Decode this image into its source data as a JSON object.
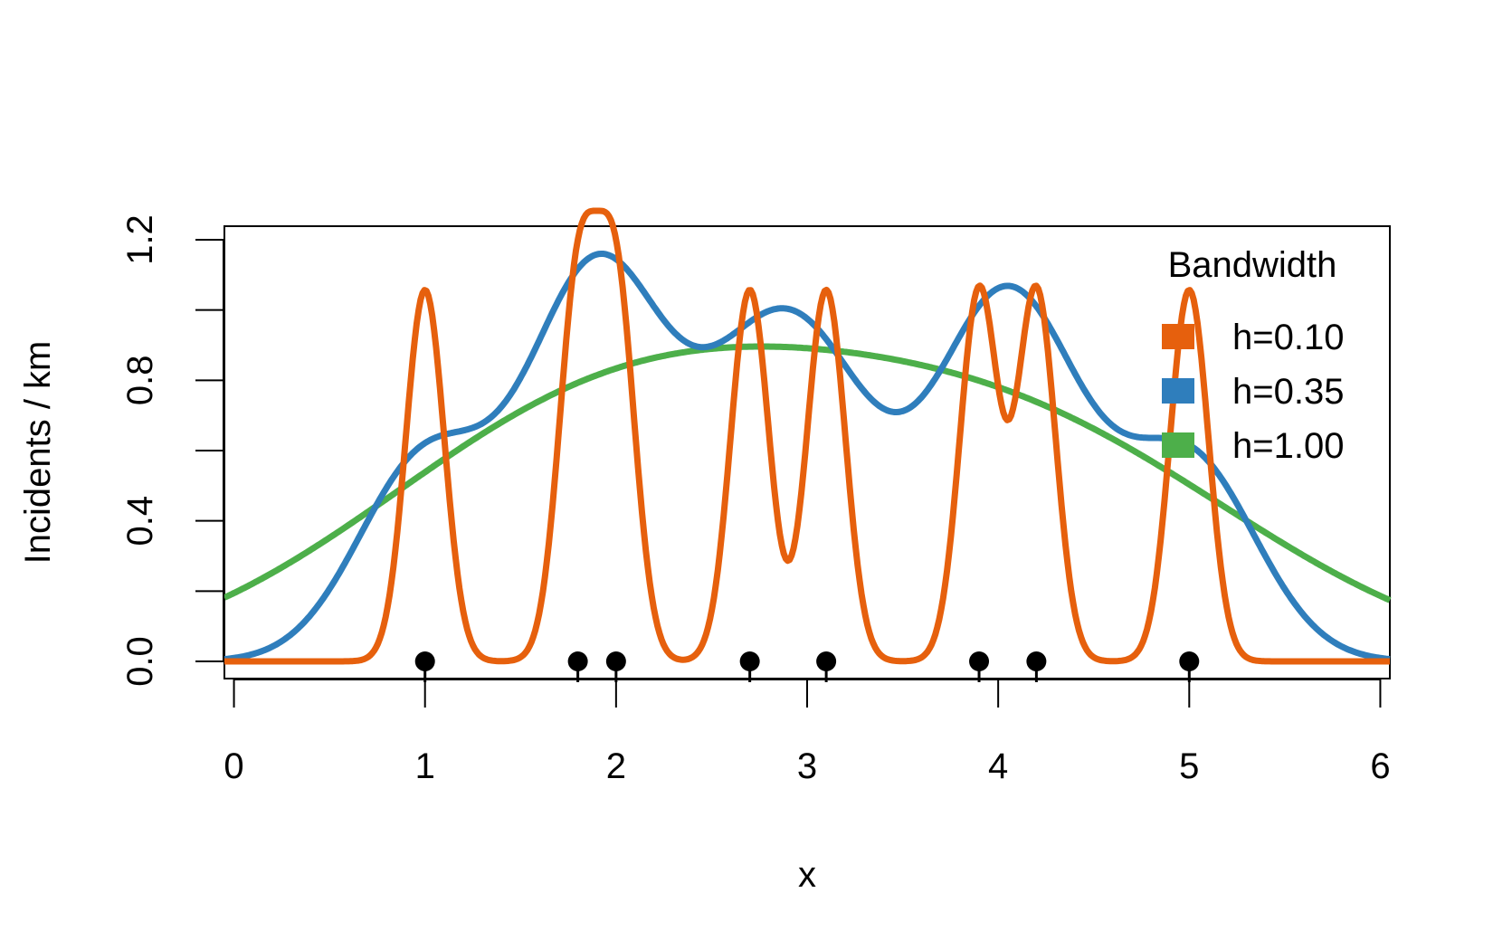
{
  "chart_data": {
    "type": "line",
    "title": "",
    "xlabel": "x",
    "ylabel": "Incidents / km",
    "xlim": [
      -0.05,
      6.05
    ],
    "ylim": [
      0,
      1.2
    ],
    "x_ticks": [
      0,
      1,
      2,
      3,
      4,
      5,
      6
    ],
    "y_ticks": [
      0.0,
      0.2,
      0.4,
      0.6,
      0.8,
      1.0,
      1.2
    ],
    "y_tick_labels": [
      "0.0",
      "",
      "0.4",
      "",
      "0.8",
      "",
      "1.2"
    ],
    "events": [
      1.0,
      1.8,
      2.0,
      2.7,
      3.1,
      3.9,
      4.2,
      5.0
    ],
    "legend": {
      "title": "Bandwidth",
      "position": "top-right"
    },
    "series": [
      {
        "name": "h=0.10",
        "bandwidth": 0.1,
        "color": "#e6600d"
      },
      {
        "name": "h=0.35",
        "bandwidth": 0.35,
        "color": "#2f7ebc"
      },
      {
        "name": "h=1.00",
        "bandwidth": 1.0,
        "color": "#4daf4a"
      }
    ],
    "grid": false
  }
}
